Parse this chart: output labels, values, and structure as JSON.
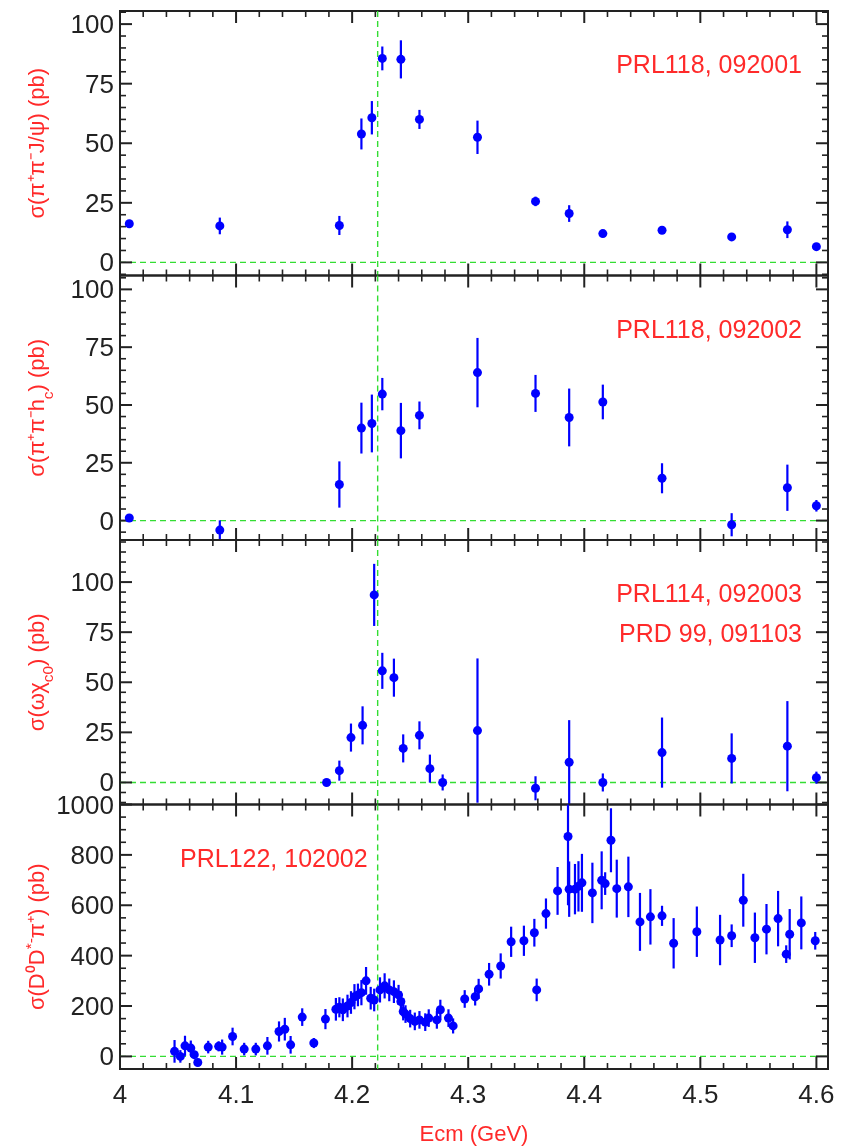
{
  "chart_data": [
    {
      "type": "scatter",
      "ylabel": "σ(π⁺π⁻J/ψ) (pb)",
      "annotations": [
        "PRL118, 092001"
      ],
      "marker": "circle",
      "tick_labels": "y",
      "color": "#0000ff",
      "x": [
        4.008,
        4.086,
        4.189,
        4.208,
        4.217,
        4.226,
        4.242,
        4.258,
        4.308,
        4.358,
        4.387,
        4.416,
        4.467,
        4.527,
        4.575,
        4.6
      ],
      "values": [
        16.2,
        15.3,
        15.5,
        53.9,
        60.7,
        85.6,
        85.2,
        60,
        52.5,
        25.6,
        20.5,
        12.1,
        13.5,
        10.7,
        13.7,
        6.6
      ],
      "errors": [
        1.5,
        3.5,
        4,
        6.5,
        7,
        5,
        8,
        4,
        7,
        2,
        3.5,
        1.5,
        1.5,
        1.5,
        3.5,
        1.5
      ],
      "xlim": [
        4,
        4.61
      ],
      "xticks": [
        4,
        4.1,
        4.2,
        4.3,
        4.4,
        4.5,
        4.6
      ],
      "ylim": [
        -5.5,
        105.5
      ],
      "yticks": [
        0,
        25,
        50,
        75,
        100
      ],
      "ref_lines": [
        {
          "axis": "x",
          "value": 4.222,
          "color": "#33dd33",
          "line_style": "dashed"
        },
        {
          "axis": "y",
          "value": 0,
          "color": "#33dd33",
          "line_style": "dashed"
        }
      ]
    },
    {
      "type": "scatter",
      "ylabel": "σ(π⁺π⁻h$_{c}$) (pb)",
      "annotations": [
        "PRL118, 092002"
      ],
      "marker": "circle",
      "tick_labels": "y",
      "color": "#0000ff",
      "x": [
        4.008,
        4.086,
        4.189,
        4.208,
        4.217,
        4.226,
        4.242,
        4.258,
        4.308,
        4.358,
        4.387,
        4.416,
        4.467,
        4.527,
        4.575,
        4.6
      ],
      "values": [
        1.1,
        -4.1,
        15.6,
        40,
        42,
        54.7,
        38.9,
        45.5,
        64,
        55,
        44.6,
        51.3,
        18.3,
        -1.8,
        14.2,
        6.4
      ],
      "errors": [
        1.5,
        4.2,
        10,
        11,
        12.5,
        7,
        12,
        6,
        15,
        8,
        12.5,
        7.5,
        6.5,
        5,
        10,
        2.5
      ],
      "xlim": [
        4,
        4.61
      ],
      "xticks": [
        4,
        4.1,
        4.2,
        4.3,
        4.4,
        4.5,
        4.6
      ],
      "ylim": [
        -8.4,
        106
      ],
      "yticks": [
        0,
        25,
        50,
        75,
        100
      ],
      "ref_lines": [
        {
          "axis": "x",
          "value": 4.222,
          "color": "#33dd33",
          "line_style": "dashed"
        },
        {
          "axis": "y",
          "value": 0,
          "color": "#33dd33",
          "line_style": "dashed"
        }
      ]
    },
    {
      "type": "scatter",
      "ylabel": "σ(ωχ$_{c0}$) (pb)",
      "annotations": [
        "PRL114, 092003",
        "PRD 99, 091103"
      ],
      "marker": "circle",
      "tick_labels": "y",
      "color": "#0000ff",
      "x": [
        4.178,
        4.189,
        4.199,
        4.209,
        4.219,
        4.226,
        4.236,
        4.244,
        4.258,
        4.267,
        4.278,
        4.308,
        4.358,
        4.387,
        4.416,
        4.467,
        4.527,
        4.575,
        4.6
      ],
      "values": [
        0,
        5.9,
        22.4,
        28.5,
        93.6,
        55.7,
        52.3,
        17,
        23.5,
        6.9,
        0,
        25.9,
        -2.9,
        10.1,
        0,
        14.9,
        12,
        18.1,
        2.4
      ],
      "errors": [
        1.5,
        5,
        7,
        9.5,
        15.5,
        9,
        9.5,
        7,
        7,
        7,
        4,
        36,
        6,
        21,
        4.5,
        17.5,
        12.5,
        22.5,
        3
      ],
      "xlim": [
        4,
        4.61
      ],
      "xticks": [
        4,
        4.1,
        4.2,
        4.3,
        4.4,
        4.5,
        4.6
      ],
      "ylim": [
        -11,
        121
      ],
      "yticks": [
        0,
        25,
        50,
        75,
        100
      ],
      "ref_lines": [
        {
          "axis": "x",
          "value": 4.222,
          "color": "#33dd33",
          "line_style": "dashed"
        },
        {
          "axis": "y",
          "value": 0,
          "color": "#33dd33",
          "line_style": "dashed"
        }
      ]
    },
    {
      "type": "scatter",
      "ylabel": "σ(D⁰D$^{*-}$π⁺) (pb)",
      "xlabel": "Ecm (GeV)",
      "annotations": [
        "PRL122, 102002"
      ],
      "marker": "circle",
      "color": "#0000ff",
      "x": [
        4.047,
        4.052,
        4.056,
        4.061,
        4.064,
        4.067,
        4.076,
        4.085,
        4.088,
        4.097,
        4.107,
        4.117,
        4.127,
        4.137,
        4.142,
        4.147,
        4.157,
        4.167,
        4.177,
        4.186,
        4.189,
        4.192,
        4.196,
        4.199,
        4.202,
        4.205,
        4.208,
        4.212,
        4.216,
        4.219,
        4.224,
        4.228,
        4.232,
        4.236,
        4.24,
        4.242,
        4.244,
        4.246,
        4.25,
        4.254,
        4.258,
        4.263,
        4.266,
        4.273,
        4.276,
        4.283,
        4.287,
        4.297,
        4.306,
        4.309,
        4.318,
        4.328,
        4.337,
        4.348,
        4.357,
        4.359,
        4.367,
        4.377,
        4.386,
        4.387,
        4.392,
        4.395,
        4.398,
        4.407,
        4.415,
        4.418,
        4.423,
        4.428,
        4.438,
        4.448,
        4.457,
        4.467,
        4.477,
        4.497,
        4.517,
        4.527,
        4.537,
        4.547,
        4.557,
        4.567,
        4.574,
        4.577,
        4.587,
        4.599
      ],
      "values": [
        20,
        0,
        42,
        33,
        7,
        -24,
        37,
        40,
        37,
        79,
        29,
        29,
        42,
        99,
        108,
        46,
        156,
        53,
        148,
        187,
        195,
        185,
        200,
        214,
        237,
        244,
        253,
        300,
        231,
        224,
        264,
        280,
        264,
        257,
        244,
        218,
        178,
        168,
        150,
        139,
        145,
        136,
        152,
        145,
        185,
        152,
        121,
        228,
        237,
        268,
        326,
        359,
        455,
        459,
        491,
        264,
        567,
        657,
        873,
        664,
        664,
        675,
        689,
        649,
        699,
        686,
        858,
        666,
        673,
        534,
        554,
        558,
        449,
        495,
        462,
        479,
        620,
        471,
        505,
        547,
        406,
        485,
        530,
        459
      ],
      "errors": [
        45,
        25,
        40,
        30,
        15,
        15,
        25,
        20,
        30,
        35,
        25,
        25,
        35,
        40,
        45,
        35,
        35,
        20,
        40,
        45,
        40,
        45,
        45,
        45,
        50,
        45,
        50,
        55,
        45,
        45,
        50,
        50,
        45,
        45,
        40,
        40,
        35,
        35,
        35,
        35,
        35,
        35,
        35,
        35,
        40,
        35,
        30,
        35,
        35,
        40,
        45,
        50,
        60,
        60,
        55,
        45,
        60,
        95,
        [
          600,
          1000
        ],
        110,
        100,
        100,
        115,
        120,
        115,
        45,
        127,
        115,
        120,
        115,
        110,
        40,
        100,
        100,
        100,
        45,
        105,
        100,
        100,
        110,
        35,
        100,
        105,
        35
      ],
      "xlim": [
        4,
        4.61
      ],
      "xticks": [
        4,
        4.1,
        4.2,
        4.3,
        4.4,
        4.5,
        4.6
      ],
      "ylim": [
        -50,
        1000
      ],
      "yticks": [
        0,
        200,
        400,
        600,
        800,
        1000
      ],
      "ref_lines": [
        {
          "axis": "x",
          "value": 4.222,
          "color": "#33dd33",
          "line_style": "dashed"
        },
        {
          "axis": "y",
          "value": 0,
          "color": "#33dd33",
          "line_style": "dashed"
        }
      ]
    }
  ]
}
